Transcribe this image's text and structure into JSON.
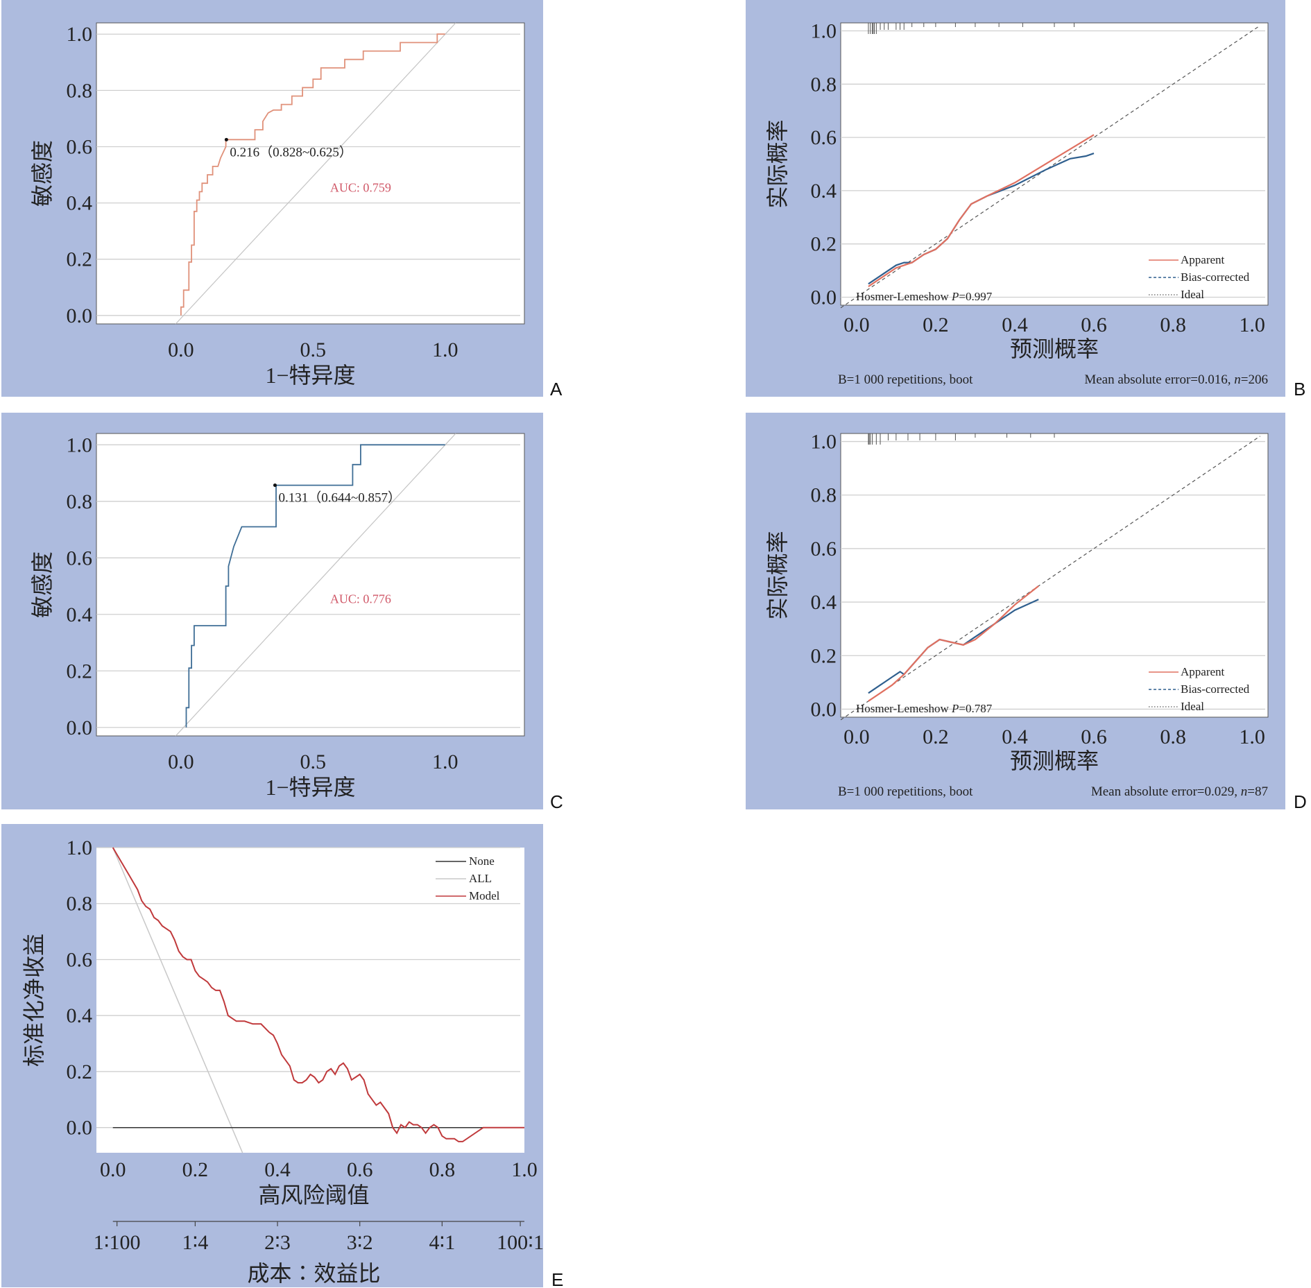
{
  "colors": {
    "panel_bg": "#adbbde",
    "roc_train": "#e0917a",
    "roc_valid": "#3f6e96",
    "apparent": "#e07060",
    "bias_corrected": "#2f5f8e",
    "ideal": "#555555",
    "model": "#c0393b",
    "none": "#333333",
    "all": "#c8c8c8",
    "auc_text": "#d05868"
  },
  "chart_data": [
    {
      "panel": "A",
      "type": "line",
      "subtype": "roc",
      "xlabel": "1−特异度",
      "ylabel": "敏感度",
      "xlim": [
        -0.32,
        1.3
      ],
      "ylim": [
        -0.03,
        1.04
      ],
      "xticks": [
        "0.0",
        "0.5",
        "1.0"
      ],
      "yticks": [
        "0.0",
        "0.2",
        "0.4",
        "0.6",
        "0.8",
        "1.0"
      ],
      "auc_label": "AUC: 0.759",
      "cutoff_label": "0.216（0.828~0.625）",
      "cutoff_point": [
        0.172,
        0.625
      ],
      "series": [
        {
          "x": [
            0,
            0,
            0.01,
            0.01,
            0.03,
            0.03,
            0.04,
            0.04,
            0.05,
            0.05,
            0.06,
            0.06,
            0.07,
            0.07,
            0.08,
            0.08,
            0.1,
            0.1,
            0.12,
            0.12,
            0.14,
            0.15,
            0.16,
            0.17,
            0.17,
            0.28,
            0.28,
            0.31,
            0.31,
            0.33,
            0.35,
            0.38,
            0.38,
            0.42,
            0.42,
            0.46,
            0.46,
            0.5,
            0.5,
            0.53,
            0.53,
            0.56,
            0.56,
            0.62,
            0.62,
            0.69,
            0.69,
            0.74,
            0.74,
            0.83,
            0.83,
            0.87,
            0.87,
            0.97,
            0.97,
            1.0,
            1.0
          ],
          "y": [
            0,
            0.03,
            0.03,
            0.09,
            0.09,
            0.19,
            0.19,
            0.25,
            0.25,
            0.37,
            0.37,
            0.41,
            0.41,
            0.44,
            0.44,
            0.47,
            0.47,
            0.5,
            0.5,
            0.53,
            0.53,
            0.56,
            0.58,
            0.6,
            0.625,
            0.625,
            0.66,
            0.66,
            0.69,
            0.72,
            0.73,
            0.73,
            0.75,
            0.75,
            0.78,
            0.78,
            0.81,
            0.81,
            0.84,
            0.84,
            0.88,
            0.88,
            0.88,
            0.88,
            0.91,
            0.91,
            0.94,
            0.94,
            0.94,
            0.94,
            0.97,
            0.97,
            0.97,
            0.97,
            1.0,
            1.0,
            1.0
          ]
        }
      ]
    },
    {
      "panel": "B",
      "type": "line",
      "subtype": "calibration",
      "xlabel": "预测概率",
      "ylabel": "实际概率",
      "xlim": [
        -0.04,
        1.04
      ],
      "ylim": [
        -0.03,
        1.03
      ],
      "xticks": [
        "0.0",
        "0.2",
        "0.4",
        "0.6",
        "0.8",
        "1.0"
      ],
      "yticks": [
        "0.0",
        "0.2",
        "0.4",
        "0.6",
        "0.8",
        "1.0"
      ],
      "legend": [
        "Apparent",
        "Bias-corrected",
        "Ideal"
      ],
      "hl_prefix": "Hosmer-Lemeshow ",
      "hl_p": "P",
      "hl_value": "=0.997",
      "footer_left": "B=1 000 repetitions, boot",
      "footer_right_prefix": "Mean absolute error=0.016, ",
      "footer_right_n": "n",
      "footer_right_value": "=206",
      "rug": [
        0.03,
        0.035,
        0.04,
        0.042,
        0.045,
        0.05,
        0.06,
        0.07,
        0.08,
        0.1,
        0.11,
        0.12,
        0.14,
        0.17,
        0.2,
        0.25,
        0.3,
        0.36,
        0.42,
        0.5,
        0.55
      ],
      "series": [
        {
          "name": "Apparent",
          "x": [
            0.03,
            0.06,
            0.1,
            0.12,
            0.14,
            0.17,
            0.2,
            0.23,
            0.26,
            0.29,
            0.33,
            0.4,
            0.5,
            0.6
          ],
          "y": [
            0.04,
            0.07,
            0.11,
            0.12,
            0.13,
            0.16,
            0.18,
            0.22,
            0.29,
            0.35,
            0.38,
            0.43,
            0.52,
            0.61
          ]
        },
        {
          "name": "Bias-corrected",
          "x": [
            0.03,
            0.06,
            0.1,
            0.12,
            0.14,
            0.17,
            0.2,
            0.23,
            0.26,
            0.29,
            0.33,
            0.4,
            0.48,
            0.54,
            0.58,
            0.6
          ],
          "y": [
            0.05,
            0.08,
            0.12,
            0.13,
            0.13,
            0.16,
            0.18,
            0.22,
            0.29,
            0.35,
            0.38,
            0.42,
            0.48,
            0.52,
            0.53,
            0.54
          ]
        }
      ]
    },
    {
      "panel": "C",
      "type": "line",
      "subtype": "roc",
      "xlabel": "1−特异度",
      "ylabel": "敏感度",
      "xlim": [
        -0.32,
        1.3
      ],
      "ylim": [
        -0.03,
        1.04
      ],
      "xticks": [
        "0.0",
        "0.5",
        "1.0"
      ],
      "yticks": [
        "0.0",
        "0.2",
        "0.4",
        "0.6",
        "0.8",
        "1.0"
      ],
      "auc_label": "AUC: 0.776",
      "cutoff_label": "0.131（0.644~0.857）",
      "cutoff_point": [
        0.356,
        0.857
      ],
      "series": [
        {
          "x": [
            0.02,
            0.02,
            0.03,
            0.03,
            0.04,
            0.04,
            0.05,
            0.05,
            0.06,
            0.06,
            0.17,
            0.17,
            0.18,
            0.18,
            0.2,
            0.23,
            0.23,
            0.36,
            0.36,
            0.65,
            0.65,
            0.68,
            0.68,
            1.0
          ],
          "y": [
            0,
            0.07,
            0.07,
            0.21,
            0.21,
            0.29,
            0.29,
            0.36,
            0.36,
            0.36,
            0.36,
            0.5,
            0.5,
            0.57,
            0.64,
            0.71,
            0.71,
            0.71,
            0.857,
            0.857,
            0.93,
            0.93,
            1.0,
            1.0
          ]
        }
      ]
    },
    {
      "panel": "D",
      "type": "line",
      "subtype": "calibration",
      "xlabel": "预测概率",
      "ylabel": "实际概率",
      "xlim": [
        -0.04,
        1.04
      ],
      "ylim": [
        -0.03,
        1.03
      ],
      "xticks": [
        "0.0",
        "0.2",
        "0.4",
        "0.6",
        "0.8",
        "1.0"
      ],
      "yticks": [
        "0.0",
        "0.2",
        "0.4",
        "0.6",
        "0.8",
        "1.0"
      ],
      "legend": [
        "Apparent",
        "Bias-corrected",
        "Ideal"
      ],
      "hl_prefix": "Hosmer-Lemeshow ",
      "hl_p": "P",
      "hl_value": "=0.787",
      "footer_left": "B=1 000 repetitions, boot",
      "footer_right_prefix": "Mean absolute error=0.029, ",
      "footer_right_n": "n",
      "footer_right_value": "=87",
      "rug": [
        0.03,
        0.032,
        0.035,
        0.04,
        0.05,
        0.06,
        0.08,
        0.1,
        0.13,
        0.16,
        0.2,
        0.25,
        0.3,
        0.38,
        0.44,
        0.5
      ],
      "series": [
        {
          "name": "Apparent",
          "x": [
            0.03,
            0.06,
            0.09,
            0.12,
            0.15,
            0.18,
            0.21,
            0.24,
            0.27,
            0.3,
            0.35,
            0.4,
            0.46
          ],
          "y": [
            0.03,
            0.06,
            0.09,
            0.13,
            0.18,
            0.23,
            0.26,
            0.25,
            0.24,
            0.26,
            0.32,
            0.39,
            0.46
          ]
        },
        {
          "name": "Bias-corrected",
          "x": [
            0.03,
            0.06,
            0.09,
            0.11,
            0.12,
            0.15,
            0.18,
            0.21,
            0.24,
            0.27,
            0.3,
            0.35,
            0.4,
            0.46
          ],
          "y": [
            0.06,
            0.09,
            0.12,
            0.14,
            0.13,
            0.18,
            0.23,
            0.26,
            0.25,
            0.24,
            0.27,
            0.32,
            0.37,
            0.41
          ]
        }
      ]
    },
    {
      "panel": "E",
      "type": "line",
      "subtype": "decision_curve",
      "xlabel": "高风险阈值",
      "ylabel": "标准化净收益",
      "xlim": [
        -0.04,
        1.0
      ],
      "ylim": [
        -0.09,
        1.0
      ],
      "xticks": [
        "0.0",
        "0.2",
        "0.4",
        "0.6",
        "0.8",
        "1.0"
      ],
      "yticks": [
        "0.0",
        "0.2",
        "0.4",
        "0.6",
        "0.8",
        "1.0"
      ],
      "cost_benefit_ticks": [
        "1∶100",
        "1∶4",
        "2∶3",
        "3∶2",
        "4∶1",
        "100∶1"
      ],
      "cost_benefit_positions": [
        0.01,
        0.2,
        0.4,
        0.6,
        0.8,
        0.99
      ],
      "cost_benefit_label": "成本∶效益比",
      "legend": [
        "None",
        "ALL",
        "Model"
      ],
      "series": [
        {
          "name": "None",
          "x": [
            0.0,
            1.0
          ],
          "y": [
            0.0,
            0.0
          ]
        },
        {
          "name": "ALL",
          "x": [
            0.0,
            0.315
          ],
          "y": [
            1.0,
            -0.09
          ]
        },
        {
          "name": "Model",
          "x": [
            0.0,
            0.02,
            0.04,
            0.06,
            0.07,
            0.08,
            0.09,
            0.1,
            0.11,
            0.12,
            0.13,
            0.14,
            0.15,
            0.16,
            0.17,
            0.18,
            0.19,
            0.2,
            0.21,
            0.22,
            0.23,
            0.24,
            0.25,
            0.26,
            0.27,
            0.28,
            0.3,
            0.32,
            0.34,
            0.36,
            0.38,
            0.39,
            0.4,
            0.41,
            0.42,
            0.43,
            0.44,
            0.45,
            0.46,
            0.47,
            0.48,
            0.49,
            0.5,
            0.51,
            0.52,
            0.53,
            0.54,
            0.55,
            0.56,
            0.57,
            0.58,
            0.59,
            0.6,
            0.61,
            0.62,
            0.63,
            0.64,
            0.65,
            0.66,
            0.67,
            0.68,
            0.69,
            0.7,
            0.71,
            0.72,
            0.73,
            0.74,
            0.75,
            0.76,
            0.77,
            0.78,
            0.79,
            0.8,
            0.81,
            0.82,
            0.83,
            0.84,
            0.85,
            0.9,
            1.0
          ],
          "y": [
            1.0,
            0.95,
            0.9,
            0.85,
            0.81,
            0.79,
            0.78,
            0.75,
            0.74,
            0.72,
            0.71,
            0.7,
            0.67,
            0.63,
            0.61,
            0.6,
            0.6,
            0.56,
            0.54,
            0.53,
            0.52,
            0.5,
            0.49,
            0.49,
            0.45,
            0.4,
            0.38,
            0.38,
            0.37,
            0.37,
            0.34,
            0.33,
            0.3,
            0.26,
            0.24,
            0.22,
            0.17,
            0.16,
            0.16,
            0.17,
            0.19,
            0.18,
            0.16,
            0.17,
            0.2,
            0.21,
            0.19,
            0.22,
            0.23,
            0.21,
            0.17,
            0.18,
            0.19,
            0.17,
            0.12,
            0.1,
            0.08,
            0.09,
            0.07,
            0.05,
            0.0,
            -0.02,
            0.01,
            0.0,
            0.02,
            0.01,
            0.01,
            0.0,
            -0.02,
            0.0,
            0.01,
            0.0,
            -0.03,
            -0.04,
            -0.04,
            -0.04,
            -0.05,
            -0.05,
            0.0,
            0.0
          ]
        }
      ]
    }
  ]
}
